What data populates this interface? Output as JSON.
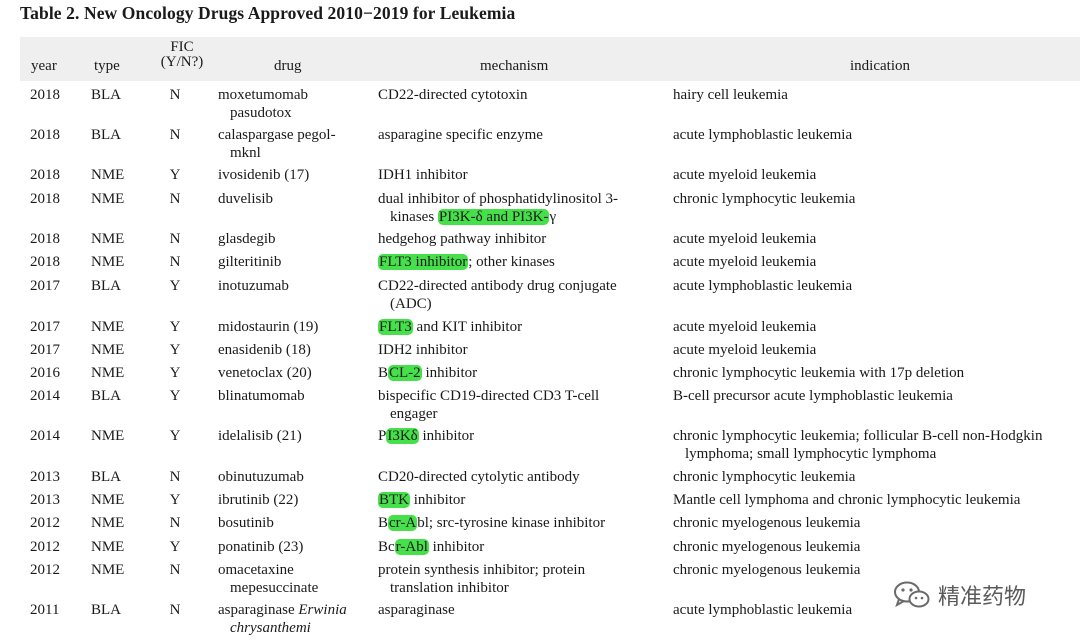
{
  "title": "Table 2. New Oncology Drugs Approved 2010−2019 for Leukemia",
  "headers": {
    "year": "year",
    "type": "type",
    "fic_line1": "FIC",
    "fic_line2": "(Y/N?)",
    "drug": "drug",
    "mechanism": "mechanism",
    "indication": "indication"
  },
  "highlight_color": "#45e04a",
  "rows": [
    {
      "year": "2018",
      "type": "BLA",
      "fic": "N",
      "drug": [
        "moxetumomab",
        "pasudotox"
      ],
      "mechanism": [
        "CD22-directed cytotoxin"
      ],
      "indication": [
        "hairy cell leukemia"
      ]
    },
    {
      "year": "2018",
      "type": "BLA",
      "fic": "N",
      "drug": [
        "calaspargase pegol-",
        "mknl"
      ],
      "mechanism": [
        "asparagine specific enzyme"
      ],
      "indication": [
        "acute lymphoblastic leukemia"
      ]
    },
    {
      "year": "2018",
      "type": "NME",
      "fic": "Y",
      "drug": [
        "ivosidenib (17)"
      ],
      "mechanism": [
        "IDH1 inhibitor"
      ],
      "indication": [
        "acute myeloid leukemia"
      ]
    },
    {
      "year": "2018",
      "type": "NME",
      "fic": "N",
      "drug": [
        "duvelisib"
      ],
      "mechanism": [
        "dual inhibitor of phosphatidylinositol 3-",
        "kinases PI3K-δ and PI3K-γ"
      ],
      "indication": [
        "chronic lymphocytic leukemia"
      ]
    },
    {
      "year": "2018",
      "type": "NME",
      "fic": "N",
      "drug": [
        "glasdegib"
      ],
      "mechanism": [
        "hedgehog pathway inhibitor"
      ],
      "indication": [
        "acute myeloid leukemia"
      ]
    },
    {
      "year": "2018",
      "type": "NME",
      "fic": "N",
      "drug": [
        "gilteritinib"
      ],
      "mechanism": [
        "FLT3 inhibitor; other kinases"
      ],
      "indication": [
        "acute myeloid leukemia"
      ]
    },
    {
      "year": "2017",
      "type": "BLA",
      "fic": "Y",
      "drug": [
        "inotuzumab"
      ],
      "mechanism": [
        "CD22-directed antibody drug conjugate",
        "(ADC)"
      ],
      "indication": [
        "acute lymphoblastic leukemia"
      ]
    },
    {
      "year": "2017",
      "type": "NME",
      "fic": "Y",
      "drug": [
        "midostaurin (19)"
      ],
      "mechanism": [
        "FLT3 and KIT inhibitor"
      ],
      "indication": [
        "acute myeloid leukemia"
      ]
    },
    {
      "year": "2017",
      "type": "NME",
      "fic": "Y",
      "drug": [
        "enasidenib (18)"
      ],
      "mechanism": [
        "IDH2 inhibitor"
      ],
      "indication": [
        "acute myeloid leukemia"
      ]
    },
    {
      "year": "2016",
      "type": "NME",
      "fic": "Y",
      "drug": [
        "venetoclax (20)"
      ],
      "mechanism": [
        "BCL-2 inhibitor"
      ],
      "indication": [
        "chronic lymphocytic leukemia with 17p deletion"
      ]
    },
    {
      "year": "2014",
      "type": "BLA",
      "fic": "Y",
      "drug": [
        "blinatumomab"
      ],
      "mechanism": [
        "bispecific CD19-directed CD3 T-cell",
        "engager"
      ],
      "indication": [
        "B-cell precursor acute lymphoblastic leukemia"
      ]
    },
    {
      "year": "2014",
      "type": "NME",
      "fic": "Y",
      "drug": [
        "idelalisib (21)"
      ],
      "mechanism": [
        "PI3Kδ inhibitor"
      ],
      "indication": [
        "chronic lymphocytic leukemia; follicular B-cell non-Hodgkin",
        "lymphoma; small lymphocytic lymphoma"
      ]
    },
    {
      "year": "2013",
      "type": "BLA",
      "fic": "N",
      "drug": [
        "obinutuzumab"
      ],
      "mechanism": [
        "CD20-directed cytolytic antibody"
      ],
      "indication": [
        "chronic lymphocytic leukemia"
      ]
    },
    {
      "year": "2013",
      "type": "NME",
      "fic": "Y",
      "drug": [
        "ibrutinib (22)"
      ],
      "mechanism": [
        "BTK inhibitor"
      ],
      "indication": [
        "Mantle cell lymphoma and chronic lymphocytic leukemia"
      ]
    },
    {
      "year": "2012",
      "type": "NME",
      "fic": "N",
      "drug": [
        "bosutinib"
      ],
      "mechanism": [
        "Bcr-Abl; src-tyrosine kinase inhibitor"
      ],
      "indication": [
        "chronic myelogenous leukemia"
      ]
    },
    {
      "year": "2012",
      "type": "NME",
      "fic": "Y",
      "drug": [
        "ponatinib (23)"
      ],
      "mechanism": [
        "Bcr-Abl inhibitor"
      ],
      "indication": [
        "chronic myelogenous leukemia"
      ]
    },
    {
      "year": "2012",
      "type": "NME",
      "fic": "N",
      "drug": [
        "omacetaxine",
        "mepesuccinate"
      ],
      "mechanism": [
        "protein synthesis inhibitor; protein",
        "translation inhibitor"
      ],
      "indication": [
        "chronic myelogenous leukemia"
      ]
    },
    {
      "year": "2011",
      "type": "BLA",
      "fic": "N",
      "drug": [
        "asparaginase Erwinia",
        "chrysanthemi"
      ],
      "mechanism": [
        "asparaginase"
      ],
      "indication": [
        "acute lymphoblastic leukemia"
      ]
    }
  ],
  "watermark": {
    "text": "精准药物",
    "icon": "wechat-logo-icon"
  }
}
